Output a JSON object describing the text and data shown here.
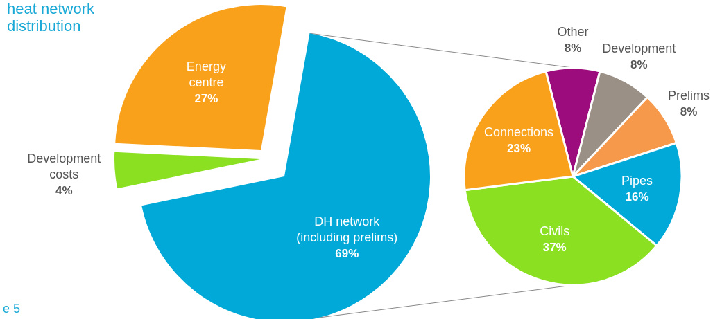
{
  "chart_data": [
    {
      "type": "pie",
      "title": "heat network distribution",
      "annotations": [
        "e 5"
      ],
      "categories": [
        "DH network (including prelims)",
        "Development costs",
        "Energy centre"
      ],
      "values": [
        69,
        4,
        27
      ],
      "value_labels": [
        "69%",
        "4%",
        "27%"
      ],
      "colors": [
        "#00a9d8",
        "#8be021",
        "#f9a11b"
      ]
    },
    {
      "type": "pie",
      "categories": [
        "Other",
        "Development",
        "Prelims",
        "Pipes",
        "Civils",
        "Connections"
      ],
      "values": [
        8,
        8,
        8,
        16,
        37,
        23
      ],
      "value_labels": [
        "8%",
        "8%",
        "8%",
        "16%",
        "37%",
        "23%"
      ],
      "colors": [
        "#9c0c7c",
        "#9b9086",
        "#f7994a",
        "#00a9d8",
        "#8be021",
        "#f9a11b"
      ]
    }
  ]
}
